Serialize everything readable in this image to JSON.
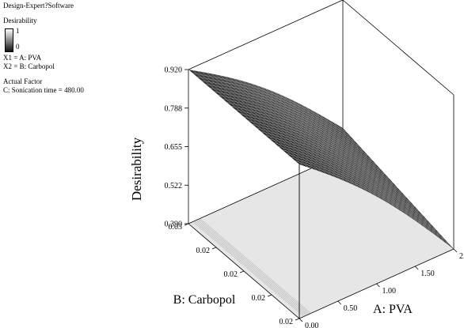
{
  "header": {
    "software": "Design-Expert?Software"
  },
  "legend": {
    "title": "Desirability",
    "max_label": "1",
    "min_label": "0"
  },
  "factors": {
    "x1": "X1 = A: PVA",
    "x2": "X2 = B: Carbopol",
    "actual_title": "Actual Factor",
    "actual_value": "C: Sonication time = 480.00"
  },
  "chart_data": {
    "type": "surface",
    "zlabel": "Desirability",
    "xlabel": "A: PVA",
    "ylabel": "B: Carbopol",
    "z_ticks": [
      "0.920",
      "0.788",
      "0.655",
      "0.522",
      "0.390"
    ],
    "x_ticks": [
      "0.00",
      "0.50",
      "1.00",
      "1.50",
      "2.00"
    ],
    "y_ticks": [
      "0.03",
      "0.02",
      "0.02",
      "0.02",
      "0.02"
    ],
    "x_range": [
      0,
      2
    ],
    "y_range": [
      0.02,
      0.03
    ],
    "z_range": [
      0.39,
      0.92
    ],
    "corners": {
      "pva_0_carbopol_high": 0.92,
      "pva_0_carbopol_low": 0.92,
      "pva_2_carbopol_high": 0.48,
      "pva_2_carbopol_low": 0.39
    },
    "surface_color": "#3a3a3a",
    "floor_color": "#e6e6e6",
    "grid": false
  }
}
